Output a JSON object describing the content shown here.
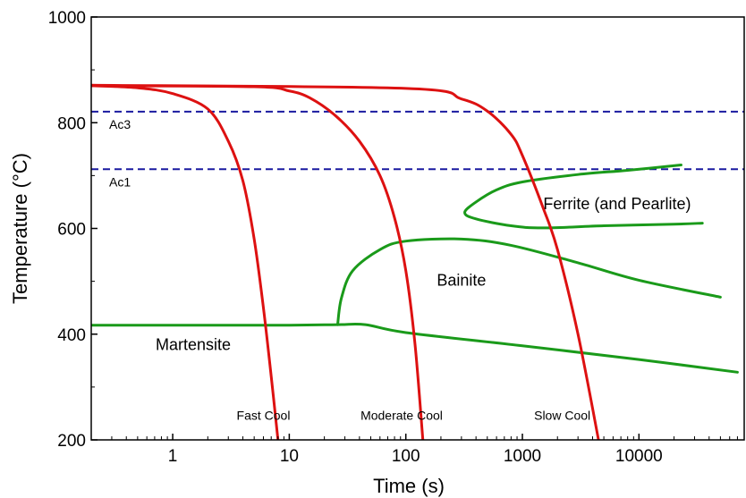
{
  "chart_data": {
    "type": "line",
    "xlabel": "Time (s)",
    "ylabel": "Temperature (°C)",
    "xscale": "log",
    "xlim": [
      0.2,
      80000
    ],
    "ylim": [
      200,
      1000
    ],
    "x_ticks": [
      {
        "value": 1,
        "label": "1"
      },
      {
        "value": 10,
        "label": "10"
      },
      {
        "value": 100,
        "label": "100"
      },
      {
        "value": 1000,
        "label": "1000"
      },
      {
        "value": 10000,
        "label": "10000"
      }
    ],
    "y_ticks": [
      {
        "value": 200,
        "label": "200"
      },
      {
        "value": 400,
        "label": "400"
      },
      {
        "value": 600,
        "label": "600"
      },
      {
        "value": 800,
        "label": "800"
      },
      {
        "value": 1000,
        "label": "1000"
      }
    ],
    "grid": false,
    "colors": {
      "cooling": "#dd1111",
      "transformation": "#1a9a1a",
      "reference": "#1a1aa0"
    },
    "reference_lines": [
      {
        "label": "Ac3",
        "y": 821
      },
      {
        "label": "Ac1",
        "y": 712
      }
    ],
    "cooling_curves": [
      {
        "name": "Fast Cool",
        "label_at": [
          6,
          255
        ],
        "points": [
          [
            0.2,
            870
          ],
          [
            0.5,
            866
          ],
          [
            1,
            855
          ],
          [
            2,
            826
          ],
          [
            3,
            765
          ],
          [
            4,
            690
          ],
          [
            5,
            580
          ],
          [
            6,
            450
          ],
          [
            7,
            320
          ],
          [
            8,
            200
          ]
        ]
      },
      {
        "name": "Moderate Cool",
        "label_at": [
          92,
          255
        ],
        "points": [
          [
            0.2,
            870
          ],
          [
            5,
            868
          ],
          [
            10,
            860
          ],
          [
            15,
            847
          ],
          [
            25,
            813
          ],
          [
            40,
            765
          ],
          [
            60,
            700
          ],
          [
            80,
            620
          ],
          [
            100,
            520
          ],
          [
            120,
            380
          ],
          [
            140,
            200
          ]
        ]
      },
      {
        "name": "Slow Cool",
        "label_at": [
          2200,
          255
        ],
        "points": [
          [
            0.2,
            871
          ],
          [
            100,
            865
          ],
          [
            300,
            845
          ],
          [
            500,
            822
          ],
          [
            800,
            778
          ],
          [
            1000,
            738
          ],
          [
            1500,
            640
          ],
          [
            2000,
            560
          ],
          [
            3000,
            400
          ],
          [
            4500,
            200
          ]
        ]
      }
    ],
    "transformation_curves": [
      {
        "name": "Ferrite (and Pearlite)",
        "label_at": [
          6500,
          636
        ],
        "points": [
          [
            23000,
            720
          ],
          [
            8000,
            710
          ],
          [
            3000,
            702
          ],
          [
            1000,
            688
          ],
          [
            600,
            673
          ],
          [
            400,
            650
          ],
          [
            320,
            630
          ],
          [
            400,
            618
          ],
          [
            800,
            605
          ],
          [
            1500,
            601
          ],
          [
            5000,
            605
          ],
          [
            20000,
            608
          ],
          [
            35000,
            610
          ]
        ]
      },
      {
        "name": "Bainite",
        "label_at": [
          300,
          492
        ],
        "points": [
          [
            26,
            418
          ],
          [
            28,
            468
          ],
          [
            35,
            520
          ],
          [
            60,
            560
          ],
          [
            100,
            576
          ],
          [
            300,
            580
          ],
          [
            800,
            568
          ],
          [
            3000,
            535
          ],
          [
            10000,
            502
          ],
          [
            50000,
            470
          ]
        ]
      },
      {
        "name": "Martensite",
        "label_at": [
          1.5,
          370
        ],
        "points": [
          [
            0.2,
            417
          ],
          [
            1,
            417
          ],
          [
            10,
            417
          ],
          [
            26,
            418
          ],
          [
            45,
            418
          ],
          [
            100,
            403
          ],
          [
            1000,
            378
          ],
          [
            10000,
            352
          ],
          [
            70000,
            328
          ]
        ]
      }
    ]
  }
}
